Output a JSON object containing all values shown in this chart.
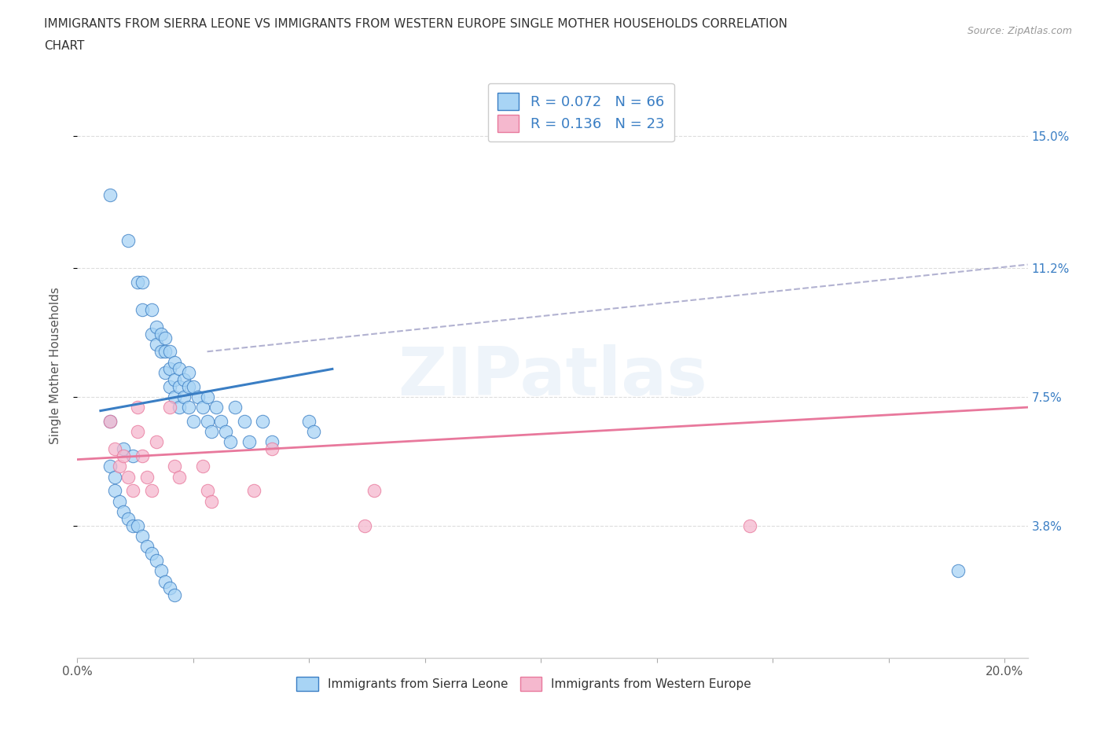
{
  "title": "IMMIGRANTS FROM SIERRA LEONE VS IMMIGRANTS FROM WESTERN EUROPE SINGLE MOTHER HOUSEHOLDS CORRELATION\nCHART",
  "source_text": "Source: ZipAtlas.com",
  "ylabel": "Single Mother Households",
  "xlim": [
    0.0,
    0.205
  ],
  "ylim": [
    0.0,
    0.168
  ],
  "ytick_positions": [
    0.038,
    0.075,
    0.112,
    0.15
  ],
  "ytick_labels": [
    "3.8%",
    "7.5%",
    "11.2%",
    "15.0%"
  ],
  "color_blue": "#A8D4F5",
  "color_pink": "#F5B8CE",
  "line_color_blue": "#3A7EC4",
  "line_color_pink": "#E8789C",
  "line_color_dashed": "#AAAACC",
  "R_blue": 0.072,
  "N_blue": 66,
  "R_pink": 0.136,
  "N_pink": 23,
  "legend_label_blue": "Immigrants from Sierra Leone",
  "legend_label_pink": "Immigrants from Western Europe",
  "watermark": "ZIPatlas",
  "sierra_leone_x": [
    0.007,
    0.011,
    0.013,
    0.014,
    0.014,
    0.016,
    0.016,
    0.017,
    0.017,
    0.018,
    0.018,
    0.019,
    0.019,
    0.019,
    0.02,
    0.02,
    0.02,
    0.021,
    0.021,
    0.021,
    0.022,
    0.022,
    0.022,
    0.023,
    0.023,
    0.024,
    0.024,
    0.024,
    0.025,
    0.025,
    0.026,
    0.027,
    0.028,
    0.028,
    0.029,
    0.03,
    0.031,
    0.032,
    0.033,
    0.034,
    0.036,
    0.037,
    0.04,
    0.042,
    0.05,
    0.051,
    0.007,
    0.01,
    0.012,
    0.007,
    0.008,
    0.008,
    0.009,
    0.01,
    0.011,
    0.012,
    0.013,
    0.014,
    0.015,
    0.016,
    0.017,
    0.018,
    0.019,
    0.02,
    0.021,
    0.19
  ],
  "sierra_leone_y": [
    0.133,
    0.12,
    0.108,
    0.108,
    0.1,
    0.093,
    0.1,
    0.09,
    0.095,
    0.088,
    0.093,
    0.082,
    0.088,
    0.092,
    0.078,
    0.083,
    0.088,
    0.075,
    0.08,
    0.085,
    0.072,
    0.078,
    0.083,
    0.075,
    0.08,
    0.072,
    0.078,
    0.082,
    0.068,
    0.078,
    0.075,
    0.072,
    0.068,
    0.075,
    0.065,
    0.072,
    0.068,
    0.065,
    0.062,
    0.072,
    0.068,
    0.062,
    0.068,
    0.062,
    0.068,
    0.065,
    0.068,
    0.06,
    0.058,
    0.055,
    0.052,
    0.048,
    0.045,
    0.042,
    0.04,
    0.038,
    0.038,
    0.035,
    0.032,
    0.03,
    0.028,
    0.025,
    0.022,
    0.02,
    0.018,
    0.025
  ],
  "western_europe_x": [
    0.007,
    0.008,
    0.009,
    0.01,
    0.011,
    0.012,
    0.013,
    0.013,
    0.014,
    0.015,
    0.016,
    0.017,
    0.02,
    0.021,
    0.022,
    0.027,
    0.028,
    0.029,
    0.038,
    0.042,
    0.062,
    0.064,
    0.145
  ],
  "western_europe_y": [
    0.068,
    0.06,
    0.055,
    0.058,
    0.052,
    0.048,
    0.072,
    0.065,
    0.058,
    0.052,
    0.048,
    0.062,
    0.072,
    0.055,
    0.052,
    0.055,
    0.048,
    0.045,
    0.048,
    0.06,
    0.038,
    0.048,
    0.038
  ],
  "background_color": "#FFFFFF",
  "plot_bg_color": "#FFFFFF",
  "grid_color": "#DDDDDD",
  "marker_size": 140,
  "blue_trendline_x": [
    0.005,
    0.055
  ],
  "blue_trendline_y": [
    0.071,
    0.083
  ],
  "pink_trendline_x": [
    0.0,
    0.205
  ],
  "pink_trendline_y": [
    0.057,
    0.072
  ],
  "dash_trendline_x": [
    0.028,
    0.205
  ],
  "dash_trendline_y": [
    0.088,
    0.113
  ]
}
